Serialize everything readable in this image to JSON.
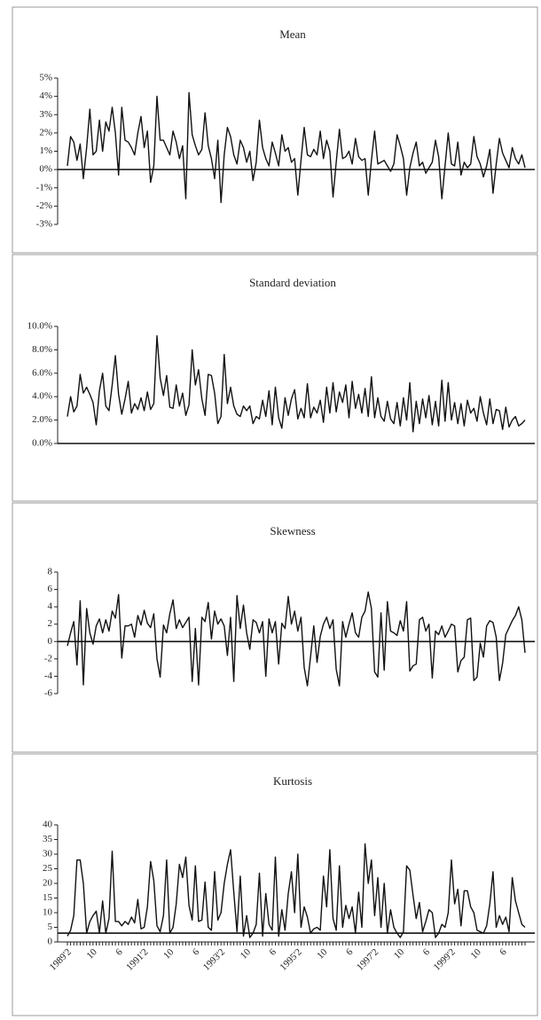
{
  "chart_data": [
    {
      "type": "line",
      "title": "Mean",
      "color": "#111111",
      "hline": 0,
      "ylim": [
        -3,
        5
      ],
      "yticks": [
        {
          "value": -3,
          "label": "-3%"
        },
        {
          "value": -2,
          "label": "-2%"
        },
        {
          "value": -1,
          "label": "-1%"
        },
        {
          "value": 0,
          "label": "0%"
        },
        {
          "value": 1,
          "label": "1%"
        },
        {
          "value": 2,
          "label": "2%"
        },
        {
          "value": 3,
          "label": "3%"
        },
        {
          "value": 4,
          "label": "4%"
        },
        {
          "value": 5,
          "label": "5%"
        }
      ],
      "values": [
        0.2,
        1.8,
        1.5,
        0.5,
        1.4,
        -0.5,
        1.2,
        3.3,
        0.8,
        1.0,
        2.7,
        1.0,
        2.6,
        2.1,
        3.4,
        2.0,
        -0.3,
        3.4,
        1.6,
        1.5,
        1.2,
        0.8,
        2.0,
        2.9,
        1.2,
        2.1,
        -0.7,
        0.2,
        4.0,
        1.6,
        1.6,
        1.2,
        0.8,
        2.1,
        1.5,
        0.6,
        1.3,
        -1.6,
        4.2,
        1.9,
        1.3,
        0.8,
        1.1,
        3.1,
        1.3,
        0.6,
        -0.5,
        1.6,
        -1.8,
        0.8,
        2.3,
        1.8,
        0.8,
        0.3,
        1.6,
        1.2,
        0.4,
        1.0,
        -0.6,
        0.4,
        2.7,
        1.2,
        0.6,
        0.2,
        1.5,
        0.9,
        0.2,
        1.9,
        1.0,
        1.2,
        0.4,
        0.6,
        -1.4,
        0.5,
        2.3,
        0.8,
        0.7,
        1.1,
        0.8,
        2.1,
        0.6,
        1.6,
        1.0,
        -1.5,
        0.4,
        2.2,
        0.6,
        0.7,
        1.0,
        0.3,
        1.7,
        0.7,
        0.5,
        0.6,
        -1.4,
        0.5,
        2.1,
        0.3,
        0.4,
        0.5,
        0.2,
        -0.1,
        0.3,
        1.9,
        1.3,
        0.6,
        -1.4,
        0.1,
        0.9,
        1.5,
        0.2,
        0.4,
        -0.2,
        0.1,
        0.4,
        1.6,
        0.7,
        -1.6,
        0.2,
        2.0,
        0.3,
        0.2,
        1.5,
        -0.3,
        0.4,
        0.1,
        0.3,
        1.8,
        0.7,
        0.3,
        -0.4,
        0.2,
        1.1,
        -1.3,
        0.3,
        1.7,
        0.9,
        0.5,
        0.1,
        1.2,
        0.6,
        0.3,
        0.8,
        0.1
      ]
    },
    {
      "type": "line",
      "title": "Standard deviation",
      "color": "#111111",
      "hline": 0,
      "ylim": [
        0,
        10
      ],
      "yticks": [
        {
          "value": 0,
          "label": "0.0%"
        },
        {
          "value": 2,
          "label": "2.0%"
        },
        {
          "value": 4,
          "label": "4.0%"
        },
        {
          "value": 6,
          "label": "6.0%"
        },
        {
          "value": 8,
          "label": "8.0%"
        },
        {
          "value": 10,
          "label": "10.0%"
        }
      ],
      "values": [
        2.3,
        4.0,
        2.7,
        3.2,
        5.9,
        4.3,
        4.8,
        4.2,
        3.5,
        1.6,
        4.5,
        6.0,
        3.2,
        2.8,
        5.0,
        7.5,
        4.2,
        2.5,
        3.8,
        5.3,
        2.6,
        3.4,
        2.9,
        3.9,
        2.8,
        4.4,
        2.9,
        3.4,
        9.2,
        5.6,
        4.1,
        5.8,
        3.1,
        3.0,
        5.0,
        3.2,
        4.3,
        2.4,
        3.3,
        8.0,
        5.0,
        6.3,
        3.8,
        2.4,
        5.9,
        5.8,
        4.3,
        1.7,
        2.3,
        7.6,
        3.4,
        4.8,
        3.2,
        2.5,
        2.3,
        3.2,
        2.8,
        3.2,
        1.7,
        2.3,
        2.1,
        3.7,
        2.3,
        4.5,
        1.6,
        4.8,
        2.2,
        1.3,
        3.9,
        2.4,
        3.8,
        4.6,
        2.1,
        3.0,
        2.2,
        5.1,
        2.2,
        3.1,
        2.6,
        3.7,
        1.8,
        4.8,
        2.6,
        5.2,
        2.7,
        4.4,
        3.5,
        5.0,
        2.2,
        5.3,
        3.0,
        4.2,
        2.6,
        4.7,
        2.3,
        5.7,
        2.2,
        3.9,
        2.3,
        1.9,
        3.6,
        2.1,
        1.7,
        3.5,
        1.5,
        3.9,
        2.0,
        5.2,
        1.0,
        3.6,
        1.7,
        3.8,
        2.2,
        4.1,
        1.6,
        3.6,
        1.5,
        5.4,
        1.9,
        5.2,
        2.0,
        3.5,
        1.7,
        3.4,
        1.5,
        3.7,
        2.6,
        3.0,
        1.9,
        4.0,
        2.6,
        1.6,
        3.8,
        1.7,
        2.9,
        2.8,
        1.2,
        3.1,
        1.4,
        2.0,
        2.3,
        1.5,
        1.7,
        2.0
      ]
    },
    {
      "type": "line",
      "title": "Skewness",
      "color": "#111111",
      "hline": 0,
      "ylim": [
        -6,
        8
      ],
      "yticks": [
        -6,
        -4,
        -2,
        0,
        2,
        4,
        6,
        8
      ],
      "values": [
        -0.5,
        1.0,
        2.3,
        -2.7,
        4.7,
        -5.0,
        3.8,
        1.0,
        -0.3,
        1.8,
        2.6,
        1.0,
        2.5,
        1.2,
        3.5,
        2.7,
        5.4,
        -1.9,
        1.8,
        1.8,
        2.0,
        0.5,
        3.0,
        1.9,
        3.6,
        2.1,
        1.6,
        3.2,
        -2.0,
        -4.1,
        1.9,
        1.0,
        3.2,
        4.8,
        1.5,
        2.5,
        1.6,
        2.2,
        2.8,
        -4.6,
        1.5,
        -5.0,
        2.8,
        2.3,
        4.5,
        0.3,
        3.5,
        2.0,
        2.6,
        1.8,
        -1.6,
        2.8,
        -4.6,
        5.3,
        1.5,
        4.2,
        1.0,
        -0.9,
        2.5,
        2.2,
        1.0,
        2.3,
        -4.0,
        2.6,
        1.0,
        2.3,
        -2.6,
        2.1,
        1.5,
        5.2,
        2.0,
        3.5,
        1.2,
        2.8,
        -3.0,
        -5.1,
        -1.7,
        1.8,
        -2.4,
        0.6,
        2.0,
        2.8,
        1.5,
        2.5,
        -3.2,
        -5.1,
        2.3,
        0.5,
        2.0,
        3.3,
        1.0,
        0.5,
        2.8,
        3.5,
        5.7,
        3.8,
        -3.5,
        -4.1,
        3.3,
        -3.3,
        4.6,
        1.2,
        1.0,
        0.7,
        2.4,
        1.2,
        4.6,
        -3.4,
        -2.8,
        -2.6,
        2.5,
        2.8,
        1.2,
        2.0,
        -4.2,
        1.2,
        0.8,
        1.8,
        0.5,
        1.2,
        2.0,
        1.8,
        -3.5,
        -2.2,
        -1.8,
        2.5,
        2.7,
        -4.5,
        -4.1,
        -0.2,
        -1.8,
        1.8,
        2.4,
        2.2,
        0.5,
        -4.5,
        -2.5,
        0.8,
        1.6,
        2.4,
        3.0,
        4.0,
        2.5,
        -1.3
      ]
    },
    {
      "type": "line",
      "title": "Kurtosis",
      "color": "#111111",
      "hline": 3,
      "ylim": [
        0,
        40
      ],
      "yticks": [
        0,
        5,
        10,
        15,
        20,
        25,
        30,
        35,
        40
      ],
      "categories": [
        "1989'2",
        null,
        null,
        null,
        null,
        null,
        null,
        null,
        "10",
        null,
        null,
        null,
        null,
        null,
        null,
        null,
        "6",
        null,
        null,
        null,
        null,
        null,
        null,
        null,
        "1991'2",
        null,
        null,
        null,
        null,
        null,
        null,
        null,
        "10",
        null,
        null,
        null,
        null,
        null,
        null,
        null,
        "6",
        null,
        null,
        null,
        null,
        null,
        null,
        null,
        "1993'2",
        null,
        null,
        null,
        null,
        null,
        null,
        null,
        "10",
        null,
        null,
        null,
        null,
        null,
        null,
        null,
        "6",
        null,
        null,
        null,
        null,
        null,
        null,
        null,
        "1995'2",
        null,
        null,
        null,
        null,
        null,
        null,
        null,
        "10",
        null,
        null,
        null,
        null,
        null,
        null,
        null,
        "6",
        null,
        null,
        null,
        null,
        null,
        null,
        null,
        "1997'2",
        null,
        null,
        null,
        null,
        null,
        null,
        null,
        "10",
        null,
        null,
        null,
        null,
        null,
        null,
        null,
        "6",
        null,
        null,
        null,
        null,
        null,
        null,
        null,
        "1999'2",
        null,
        null,
        null,
        null,
        null,
        null,
        null,
        "10",
        null,
        null,
        null,
        null,
        null,
        null,
        null,
        "6",
        null,
        null,
        null,
        null,
        null,
        null,
        null
      ],
      "values": [
        2.0,
        4.0,
        9.0,
        28.0,
        28.0,
        20.0,
        3.0,
        7.0,
        9.0,
        10.5,
        3.0,
        14.0,
        3.0,
        8.0,
        31.0,
        7.0,
        7.0,
        5.5,
        7.0,
        6.0,
        8.5,
        6.5,
        14.5,
        4.5,
        5.0,
        12.0,
        27.5,
        21.0,
        5.5,
        3.5,
        9.0,
        28.0,
        3.0,
        5.0,
        13.0,
        26.5,
        22.0,
        29.0,
        12.5,
        7.5,
        26.0,
        7.0,
        7.5,
        20.5,
        5.0,
        4.0,
        24.0,
        7.5,
        10.0,
        20.0,
        26.5,
        31.5,
        17.0,
        3.5,
        22.5,
        2.0,
        9.0,
        1.5,
        3.0,
        6.0,
        23.5,
        2.0,
        16.5,
        6.0,
        4.0,
        29.0,
        2.0,
        11.0,
        4.0,
        16.5,
        24.0,
        10.0,
        30.0,
        5.0,
        12.0,
        8.5,
        3.0,
        4.5,
        5.0,
        4.0,
        22.5,
        12.0,
        31.5,
        8.0,
        4.0,
        26.0,
        5.0,
        12.5,
        8.0,
        12.0,
        3.0,
        17.0,
        5.0,
        33.5,
        20.0,
        28.0,
        9.0,
        22.0,
        5.0,
        20.0,
        3.0,
        11.0,
        5.0,
        3.0,
        1.5,
        3.5,
        26.0,
        24.5,
        16.0,
        8.0,
        13.5,
        3.5,
        7.0,
        11.0,
        10.0,
        1.5,
        3.0,
        6.0,
        5.0,
        10.0,
        28.0,
        13.0,
        18.0,
        5.5,
        17.5,
        17.5,
        12.0,
        10.0,
        4.0,
        3.5,
        3.0,
        5.5,
        13.0,
        24.0,
        5.0,
        9.0,
        6.0,
        8.5,
        3.5,
        22.0,
        14.0,
        10.0,
        6.0,
        5.0
      ]
    }
  ]
}
